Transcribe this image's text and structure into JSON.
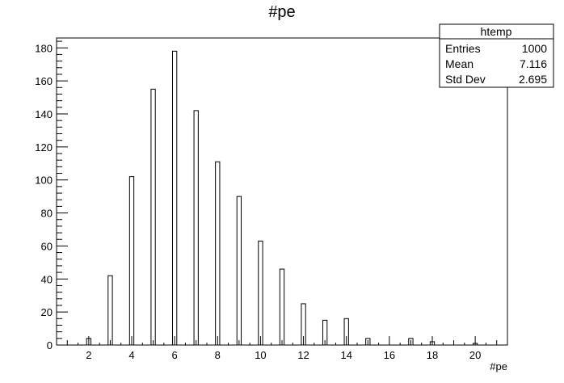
{
  "chart_data": {
    "type": "bar",
    "title": "#pe",
    "xlabel": "#pe",
    "ylabel": "",
    "xlim": [
      0.5,
      21.5
    ],
    "ylim": [
      0,
      186
    ],
    "bar_width": 0.2,
    "x_ticks": [
      2,
      4,
      6,
      8,
      10,
      12,
      14,
      16,
      18,
      20
    ],
    "y_ticks": [
      0,
      20,
      40,
      60,
      80,
      100,
      120,
      140,
      160,
      180
    ],
    "x": [
      2,
      3,
      4,
      5,
      6,
      7,
      8,
      9,
      10,
      11,
      12,
      13,
      14,
      15,
      17,
      18,
      20
    ],
    "values": [
      4,
      42,
      102,
      155,
      178,
      142,
      111,
      90,
      63,
      46,
      25,
      15,
      16,
      4,
      4,
      2,
      1
    ],
    "grid": false,
    "legend": "none",
    "stats_box": {
      "name": "htemp",
      "rows": [
        {
          "label": "Entries",
          "value": "1000"
        },
        {
          "label": "Mean",
          "value": "7.116"
        },
        {
          "label": "Std Dev",
          "value": "2.695"
        }
      ],
      "placement": "top-right"
    }
  }
}
